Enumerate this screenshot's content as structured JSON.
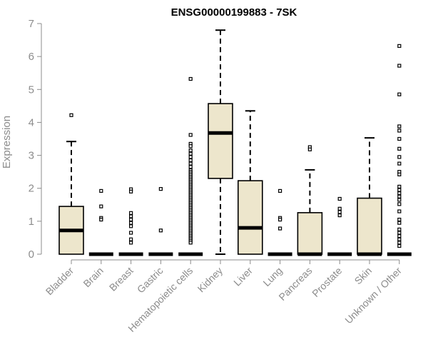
{
  "chart_data": {
    "type": "boxplot",
    "title": "ENSG00000199883 - 7SK",
    "xlabel": "",
    "ylabel": "Expression",
    "ylim": [
      0,
      7
    ],
    "yticks": [
      0,
      1,
      2,
      3,
      4,
      5,
      6,
      7
    ],
    "grid": false,
    "box_color": "#ede6cc",
    "categories": [
      "Bladder",
      "Brain",
      "Breast",
      "Gastric",
      "Hematopoietic cells",
      "Kidney",
      "Liver",
      "Lung",
      "Pancreas",
      "Prostate",
      "Skin",
      "Unknown / Other"
    ],
    "boxes": [
      {
        "min": 0,
        "q1": 0,
        "median": 0.72,
        "q3": 1.45,
        "max": 3.42,
        "outliers": [
          4.22
        ]
      },
      {
        "min": 0,
        "q1": 0,
        "median": 0,
        "q3": 0,
        "max": 0,
        "outliers": [
          1.92,
          1.45,
          1.1,
          1.05
        ]
      },
      {
        "min": 0,
        "q1": 0,
        "median": 0,
        "q3": 0,
        "max": 0,
        "outliers": [
          1.97,
          1.9,
          1.25,
          1.15,
          1.05,
          0.95,
          0.85,
          0.65,
          0.45,
          0.35
        ]
      },
      {
        "min": 0,
        "q1": 0,
        "median": 0,
        "q3": 0,
        "max": 0,
        "outliers": [
          1.98,
          0.72
        ]
      },
      {
        "min": 0,
        "q1": 0,
        "median": 0,
        "q3": 0,
        "max": 0,
        "outliers": [
          5.32,
          3.62,
          3.35,
          3.28,
          3.15,
          3.05,
          2.95,
          2.85,
          2.75,
          2.65,
          2.55,
          2.5,
          2.45,
          2.4,
          2.35,
          2.3,
          2.25,
          2.2,
          2.15,
          2.1,
          2.05,
          2.0,
          1.95,
          1.9,
          1.85,
          1.8,
          1.75,
          1.7,
          1.65,
          1.6,
          1.55,
          1.5,
          1.45,
          1.4,
          1.35,
          1.3,
          1.25,
          1.2,
          1.15,
          1.1,
          1.05,
          1.0,
          0.95,
          0.9,
          0.85,
          0.8,
          0.75,
          0.7,
          0.65,
          0.6,
          0.55,
          0.5,
          0.45,
          0.4,
          0.35
        ]
      },
      {
        "min": 0,
        "q1": 2.3,
        "median": 3.68,
        "q3": 4.57,
        "max": 6.8,
        "outliers": []
      },
      {
        "min": 0,
        "q1": 0,
        "median": 0.8,
        "q3": 2.23,
        "max": 4.35,
        "outliers": []
      },
      {
        "min": 0,
        "q1": 0,
        "median": 0,
        "q3": 0,
        "max": 0,
        "outliers": [
          1.92,
          1.1,
          1.05,
          0.78
        ]
      },
      {
        "min": 0,
        "q1": 0,
        "median": 0,
        "q3": 1.26,
        "max": 2.56,
        "outliers": [
          3.25,
          3.18
        ]
      },
      {
        "min": 0,
        "q1": 0,
        "median": 0,
        "q3": 0,
        "max": 0,
        "outliers": [
          1.68,
          1.38,
          1.28,
          1.18
        ]
      },
      {
        "min": 0,
        "q1": 0,
        "median": 0,
        "q3": 1.7,
        "max": 3.53,
        "outliers": []
      },
      {
        "min": 0,
        "q1": 0,
        "median": 0,
        "q3": 0,
        "max": 0,
        "outliers": [
          6.32,
          5.72,
          4.85,
          3.88,
          3.75,
          3.5,
          3.2,
          2.95,
          2.75,
          2.5,
          2.42,
          2.05,
          1.95,
          1.85,
          1.75,
          1.65,
          1.52,
          1.3,
          1.05,
          0.95,
          0.75,
          0.65,
          0.55,
          0.45,
          0.35,
          0.25
        ]
      }
    ]
  }
}
